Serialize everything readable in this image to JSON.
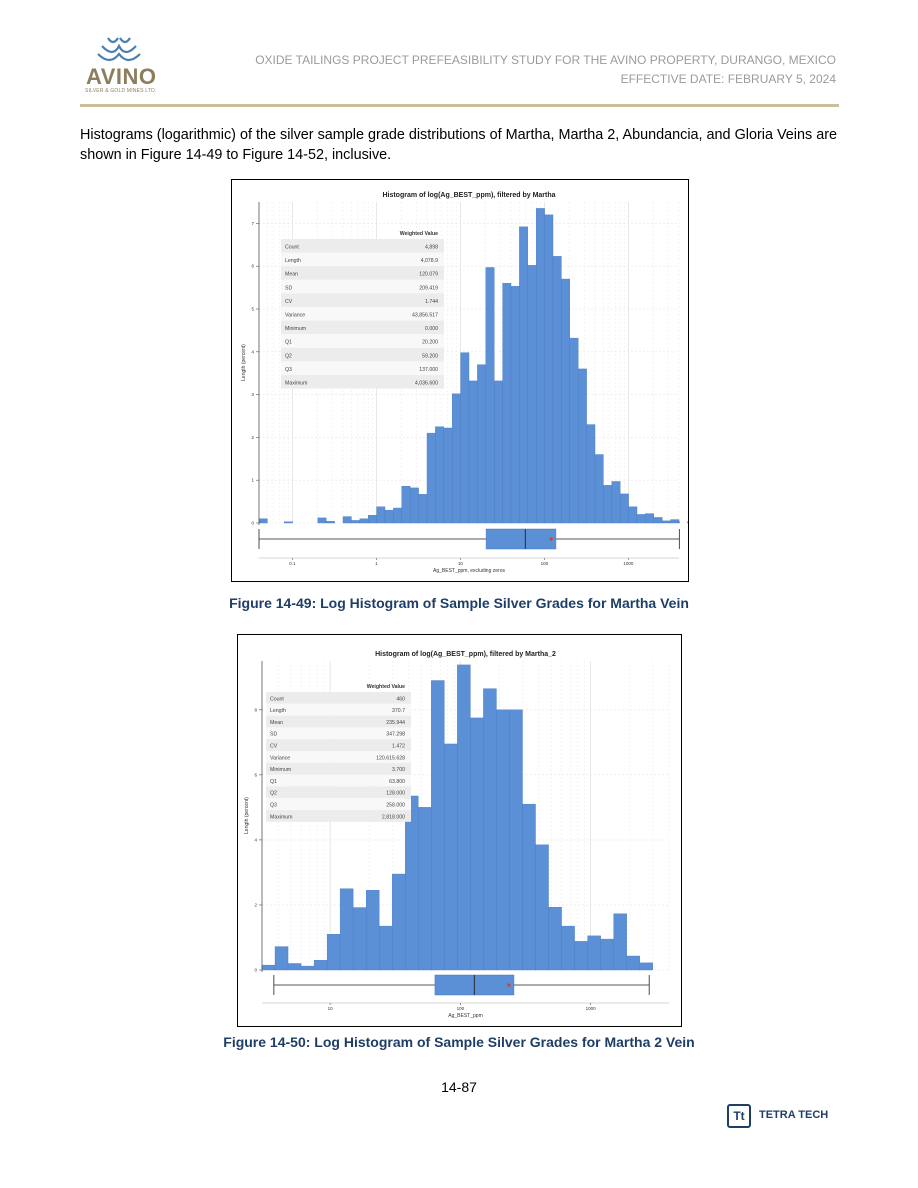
{
  "header": {
    "logo_text": "AVINO",
    "logo_subtext": "SILVER & GOLD MINES LTD.",
    "title_line1": "OXIDE TAILINGS PROJECT PREFEASIBILITY STUDY FOR THE AVINO PROPERTY, DURANGO, MEXICO",
    "title_line2": "EFFECTIVE DATE: FEBRUARY 5, 2024",
    "accent_color": "#c9bf9e"
  },
  "body": {
    "paragraph": "Histograms (logarithmic) of the silver sample grade distributions of Martha, Martha 2, Abundancia, and Gloria Veins are shown in Figure 14-49 to Figure 14-52, inclusive."
  },
  "figures": [
    {
      "caption": "Figure 14-49: Log Histogram of Sample Silver Grades for Martha Vein",
      "chart_data": {
        "type": "bar",
        "title": "Histogram of log(Ag_BEST_ppm), filtered by Martha",
        "xlabel": "Ag_BEST_ppm, excluding zeros",
        "ylabel": "Length (percent)",
        "x_scale": "log",
        "xlim": [
          0.04,
          4000
        ],
        "ylim": [
          0,
          7.5
        ],
        "xticks": [
          0.1,
          1,
          10,
          100,
          1000
        ],
        "xtick_labels": [
          "0.1",
          "1",
          "10",
          "100",
          "1000"
        ],
        "yticks": [
          0,
          1,
          2,
          3,
          4,
          5,
          6,
          7
        ],
        "ytick_labels": [
          "0",
          "1",
          "2",
          "3",
          "4",
          "5",
          "6",
          "7"
        ],
        "bar_color": "#5b8fd6",
        "bins": {
          "start": 0.04,
          "log10_width": 0.1,
          "values": [
            0.1,
            0,
            0,
            0.03,
            0,
            0,
            0,
            0.12,
            0.04,
            0,
            0.15,
            0.06,
            0.1,
            0.18,
            0.38,
            0.3,
            0.35,
            0.86,
            0.82,
            0.67,
            2.1,
            2.25,
            2.22,
            3.02,
            3.98,
            3.32,
            3.7,
            5.97,
            3.32,
            5.6,
            5.53,
            6.92,
            6.02,
            7.35,
            7.2,
            6.23,
            5.7,
            4.32,
            3.6,
            2.3,
            1.6,
            0.88,
            0.97,
            0.68,
            0.38,
            0.2,
            0.22,
            0.13,
            0.05,
            0.08,
            0.04,
            0.03
          ]
        },
        "boxplot": {
          "min": 0.04,
          "q1": 20.2,
          "median": 59.2,
          "q3": 137.0,
          "mean": 120.079,
          "max": 4036.6
        },
        "stats_table": {
          "header": "Weighted Value",
          "rows": [
            {
              "label": "Count",
              "value": "4,898"
            },
            {
              "label": "Length",
              "value": "4,078.9"
            },
            {
              "label": "Mean",
              "value": "120.079"
            },
            {
              "label": "SD",
              "value": "209.419"
            },
            {
              "label": "CV",
              "value": "1.744"
            },
            {
              "label": "Variance",
              "value": "43,856.517"
            },
            {
              "label": "Minimum",
              "value": "0.000"
            },
            {
              "label": "Q1",
              "value": "20.200"
            },
            {
              "label": "Q2",
              "value": "59.200"
            },
            {
              "label": "Q3",
              "value": "137.000"
            },
            {
              "label": "Maximum",
              "value": "4,036.600"
            }
          ]
        }
      }
    },
    {
      "caption": "Figure 14-50: Log Histogram of Sample Silver Grades for Martha 2 Vein",
      "chart_data": {
        "type": "bar",
        "title": "Histogram of log(Ag_BEST_ppm), filtered by Martha_2",
        "xlabel": "Ag_BEST_ppm",
        "ylabel": "Length (percent)",
        "x_scale": "log",
        "xlim": [
          3.0,
          4000
        ],
        "ylim": [
          0,
          9.5
        ],
        "xticks": [
          10,
          100,
          1000
        ],
        "xtick_labels": [
          "10",
          "100",
          "1000"
        ],
        "yticks": [
          0,
          2,
          4,
          6,
          8
        ],
        "ytick_labels": [
          "0",
          "2",
          "4",
          "6",
          "8"
        ],
        "bar_color": "#5b8fd6",
        "bins": {
          "start": 3.0,
          "log10_width": 0.1,
          "values": [
            0.15,
            0.72,
            0.2,
            0.12,
            0.3,
            1.1,
            2.5,
            1.92,
            2.45,
            1.35,
            2.95,
            5.35,
            5.0,
            8.9,
            6.95,
            9.38,
            7.75,
            8.65,
            8.0,
            8.0,
            5.1,
            3.85,
            1.93,
            1.35,
            0.88,
            1.05,
            0.95,
            1.73,
            0.43,
            0.22
          ]
        },
        "boxplot": {
          "min": 3.7,
          "q1": 63.8,
          "median": 128.0,
          "q3": 258.0,
          "mean": 235.944,
          "max": 2818.0
        },
        "stats_table": {
          "header": "Weighted Value",
          "rows": [
            {
              "label": "Count",
              "value": "460"
            },
            {
              "label": "Length",
              "value": "370.7"
            },
            {
              "label": "Mean",
              "value": "235.944"
            },
            {
              "label": "SD",
              "value": "347.298"
            },
            {
              "label": "CV",
              "value": "1.472"
            },
            {
              "label": "Variance",
              "value": "120,615.628"
            },
            {
              "label": "Minimum",
              "value": "3.700"
            },
            {
              "label": "Q1",
              "value": "63.800"
            },
            {
              "label": "Q2",
              "value": "128.000"
            },
            {
              "label": "Q3",
              "value": "258.000"
            },
            {
              "label": "Maximum",
              "value": "2,818.000"
            }
          ]
        }
      }
    }
  ],
  "footer": {
    "page_number": "14-87",
    "company_logo_text": "TETRA TECH",
    "company_logo_mark": "Tt"
  }
}
